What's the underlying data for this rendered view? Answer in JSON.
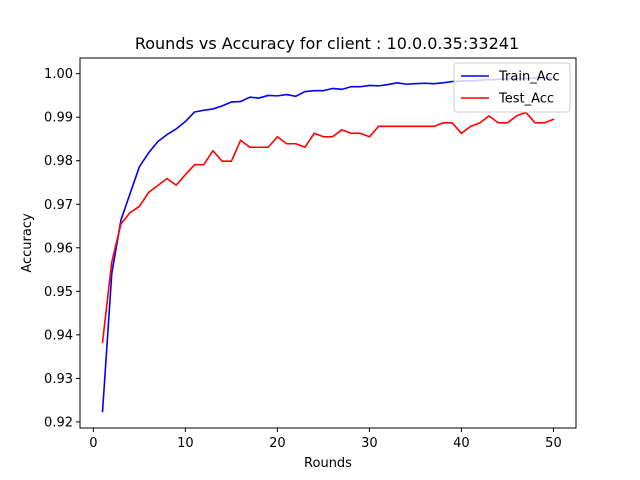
{
  "chart_data": {
    "type": "line",
    "title": "Rounds vs Accuracy for client : 10.0.0.35:33241",
    "xlabel": "Rounds",
    "ylabel": "Accuracy",
    "xlim": [
      -1.45,
      52.45
    ],
    "ylim": [
      0.9186,
      1.0036
    ],
    "xticks": [
      0,
      10,
      20,
      30,
      40,
      50
    ],
    "yticks": [
      0.92,
      0.93,
      0.94,
      0.95,
      0.96,
      0.97,
      0.98,
      0.99,
      1.0
    ],
    "ytick_labels": [
      "0.92",
      "0.93",
      "0.94",
      "0.95",
      "0.96",
      "0.97",
      "0.98",
      "0.99",
      "1.00"
    ],
    "grid": false,
    "legend_position": "top-right",
    "x": [
      1,
      2,
      3,
      4,
      5,
      6,
      7,
      8,
      9,
      10,
      11,
      12,
      13,
      14,
      15,
      16,
      17,
      18,
      19,
      20,
      21,
      22,
      23,
      24,
      25,
      26,
      27,
      28,
      29,
      30,
      31,
      32,
      33,
      34,
      35,
      36,
      37,
      38,
      39,
      40,
      41,
      42,
      43,
      44,
      45,
      46,
      47,
      48,
      49,
      50
    ],
    "series": [
      {
        "name": "Train_Acc",
        "color": "#0000ff",
        "values": [
          0.9224,
          0.954,
          0.9664,
          0.9725,
          0.9786,
          0.9818,
          0.9844,
          0.986,
          0.9873,
          0.989,
          0.9912,
          0.9916,
          0.9919,
          0.9926,
          0.9935,
          0.9936,
          0.9946,
          0.9944,
          0.995,
          0.9949,
          0.9952,
          0.9948,
          0.9959,
          0.9961,
          0.9961,
          0.9966,
          0.9964,
          0.997,
          0.997,
          0.9973,
          0.9972,
          0.9975,
          0.9979,
          0.9976,
          0.9977,
          0.9978,
          0.9977,
          0.9979,
          0.9982,
          0.9983,
          0.9984,
          0.9985,
          0.9986,
          0.9987,
          0.9988,
          0.9989,
          0.9989,
          0.999,
          0.999,
          0.9991
        ]
      },
      {
        "name": "Test_Acc",
        "color": "#ff0000",
        "values": [
          0.9383,
          0.9567,
          0.9655,
          0.9681,
          0.9695,
          0.9727,
          0.9743,
          0.9759,
          0.9744,
          0.9768,
          0.9791,
          0.9791,
          0.9823,
          0.9799,
          0.9799,
          0.9847,
          0.9831,
          0.9831,
          0.9831,
          0.9855,
          0.9839,
          0.9839,
          0.9831,
          0.9863,
          0.9855,
          0.9855,
          0.9871,
          0.9863,
          0.9863,
          0.9855,
          0.9879,
          0.9879,
          0.9879,
          0.9879,
          0.9879,
          0.9879,
          0.9879,
          0.9887,
          0.9887,
          0.9863,
          0.9879,
          0.9887,
          0.9903,
          0.9887,
          0.9887,
          0.9903,
          0.9911,
          0.9887,
          0.9887,
          0.9895
        ]
      }
    ]
  }
}
